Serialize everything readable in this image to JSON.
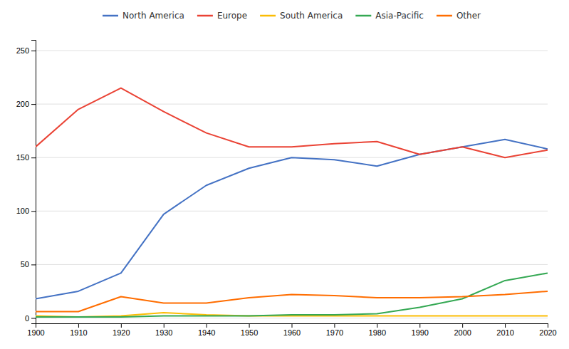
{
  "chart_data": {
    "type": "line",
    "x": [
      1900,
      1910,
      1920,
      1930,
      1940,
      1950,
      1960,
      1970,
      1980,
      1990,
      2000,
      2010,
      2020
    ],
    "series": [
      {
        "name": "North America",
        "color": "#4472C4",
        "values": [
          18,
          25,
          42,
          97,
          124,
          140,
          150,
          148,
          142,
          153,
          160,
          167,
          158
        ]
      },
      {
        "name": "Europe",
        "color": "#EA4335",
        "values": [
          160,
          195,
          215,
          193,
          173,
          160,
          160,
          163,
          165,
          153,
          160,
          150,
          157
        ]
      },
      {
        "name": "South America",
        "color": "#FBBC04",
        "values": [
          2,
          1,
          2,
          5,
          3,
          2,
          2,
          2,
          2,
          2,
          2,
          2,
          2
        ]
      },
      {
        "name": "Asia-Pacific",
        "color": "#34A853",
        "values": [
          1,
          1,
          1,
          2,
          2,
          2,
          3,
          3,
          4,
          10,
          18,
          35,
          42
        ]
      },
      {
        "name": "Other",
        "color": "#FF6D00",
        "values": [
          6,
          6,
          20,
          14,
          14,
          19,
          22,
          21,
          19,
          19,
          20,
          22,
          25
        ]
      }
    ],
    "xlim": [
      1900,
      2020
    ],
    "xticks": [
      1900,
      1910,
      1920,
      1930,
      1940,
      1950,
      1960,
      1970,
      1980,
      1990,
      2000,
      2010,
      2020
    ],
    "ylim": [
      -5,
      260
    ],
    "yticks": [
      0,
      50,
      100,
      150,
      200,
      250
    ],
    "grid": true,
    "legend": "top"
  }
}
